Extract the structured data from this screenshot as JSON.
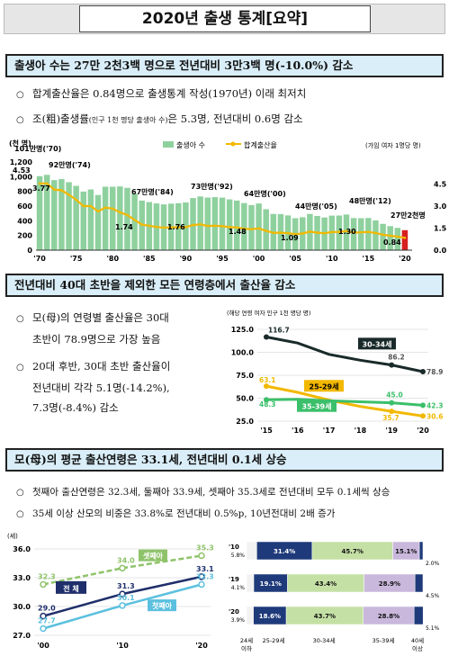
{
  "title": "2020년 출생 통계[요약]",
  "section1": {
    "head": "출생아 수는 27만 2천3백 명으로 전년대비 3만3백 명(-10.0%) 감소",
    "bullet1": "합계출산율은 0.84명으로 출생통계 작성(1970년) 이래 최저치",
    "bullet2_a": "조(粗)출생률",
    "bullet2_note": "(인구 1천 명당 출생아 수)",
    "bullet2_b": "은 5.3명, 전년대비 0.6명 감소"
  },
  "chart1": {
    "yleft_unit": "(천 명)",
    "yright_unit": "(가임 여자 1명당 명)",
    "legend_births": "출생아 수",
    "legend_tfr": "합계출산율",
    "yleft_ticks": [
      "1,200",
      "1,000",
      "800",
      "600",
      "400",
      "200",
      "0"
    ],
    "yright_ticks": [
      "4.50",
      "3.00",
      "1.50",
      "0.00"
    ],
    "xticks": [
      "'70",
      "'75",
      "'80",
      "'85",
      "'90",
      "'95",
      "'00",
      "'05",
      "'10",
      "'15",
      "'20"
    ],
    "birth_labels": [
      "101만명('70)",
      "92만명('74)",
      "67만명('84)",
      "73만명('92)",
      "64만명('00)",
      "44만명('05)",
      "48만명('12)",
      "27만2천명"
    ],
    "tfr_labels": [
      "4.53",
      "3.77",
      "1.74",
      "1.76",
      "1.48",
      "1.09",
      "1.30",
      "0.84"
    ]
  },
  "section2": {
    "head": "전년대비 40대 초반을 제외한 모든 연령층에서 출산율 감소",
    "bullet1_l1": "모(母)의 연령별 출산율은 30대",
    "bullet1_l2": "초반이 78.9명으로 가장 높음",
    "bullet2_l1": "20대 후반, 30대 초반 출산율이",
    "bullet2_l2": "전년대비 각각 5.1명(-14.2%),",
    "bullet2_l3": "7.3명(-8.4%) 감소"
  },
  "chart2": {
    "unit": "(해당 연령 여자 인구 1천 명당 명)",
    "yticks": [
      "125.0",
      "100.0",
      "75.0",
      "50.0",
      "25.0"
    ],
    "xticks": [
      "'15",
      "'16",
      "'17",
      "'18",
      "'19",
      "'20"
    ],
    "series_3034": "30-34세",
    "series_2529": "25-29세",
    "series_3539": "35-39세",
    "labels": [
      "116.7",
      "86.2",
      "78.9",
      "63.1",
      "48.3",
      "45.0",
      "42.3",
      "35.7",
      "30.6"
    ]
  },
  "section3": {
    "head": "모(母)의 평균 출산연령은 33.1세, 전년대비 0.1세 상승",
    "bullet1": "첫째아 출산연령은 32.3세, 둘째아 33.9세, 셋째아 35.3세로 전년대비 모두 0.1세씩 상승",
    "bullet2": "35세 이상 산모의 비중은 33.8%로 전년대비 0.5%p, 10년전대비 2배 증가"
  },
  "chart3": {
    "unit": "(세)",
    "yticks": [
      "36.0",
      "33.0",
      "30.0",
      "27.0"
    ],
    "xticks": [
      "'00",
      "'10",
      "'20"
    ],
    "series_third": "셋째아",
    "series_total": "전  체",
    "series_first": "첫째아",
    "labels_third": [
      "32.3",
      "34.0",
      "35.3"
    ],
    "labels_total": [
      "29.0",
      "31.3",
      "33.1"
    ],
    "labels_first": [
      "27.7",
      "30.1",
      "32.3"
    ]
  },
  "chart4": {
    "rows": [
      {
        "year": "'10",
        "vals": [
          "5.8%",
          "31.4%",
          "45.7%",
          "15.1%",
          "2.0%"
        ]
      },
      {
        "year": "'19",
        "vals": [
          "4.1%",
          "19.1%",
          "43.4%",
          "28.9%",
          "4.5%"
        ]
      },
      {
        "year": "'20",
        "vals": [
          "3.9%",
          "18.6%",
          "43.7%",
          "28.8%",
          "5.1%"
        ]
      }
    ],
    "xlabels": [
      "24세\n이하",
      "25-29세",
      "30-34세",
      "35-39세",
      "40세\n이상"
    ],
    "colors": [
      "#f2f2f2",
      "#1f3a7a",
      "#c5e0a5",
      "#c9b8dc",
      "#1f3a7a"
    ]
  },
  "chart_data": [
    {
      "type": "bar",
      "title": "",
      "ylabel": "(천 명)",
      "x": [
        1970,
        1971,
        1972,
        1973,
        1974,
        1975,
        1976,
        1977,
        1978,
        1979,
        1980,
        1981,
        1982,
        1983,
        1984,
        1985,
        1986,
        1987,
        1988,
        1989,
        1990,
        1991,
        1992,
        1993,
        1994,
        1995,
        1996,
        1997,
        1998,
        1999,
        2000,
        2001,
        2002,
        2003,
        2004,
        2005,
        2006,
        2007,
        2008,
        2009,
        2010,
        2011,
        2012,
        2013,
        2014,
        2015,
        2016,
        2017,
        2018,
        2019,
        2020
      ],
      "series": [
        {
          "name": "출생아 수",
          "values": [
            1007,
            1025,
            953,
            967,
            925,
            875,
            797,
            826,
            751,
            863,
            863,
            867,
            848,
            769,
            675,
            655,
            636,
            623,
            633,
            639,
            650,
            709,
            731,
            716,
            721,
            715,
            691,
            675,
            641,
            614,
            635,
            557,
            493,
            491,
            473,
            435,
            448,
            493,
            466,
            445,
            470,
            471,
            485,
            437,
            435,
            438,
            406,
            358,
            327,
            303,
            272
          ]
        },
        {
          "name": "합계출산율",
          "values": [
            4.53,
            4.54,
            4.12,
            4.07,
            3.77,
            3.43,
            3.0,
            3.0,
            2.64,
            2.9,
            2.82,
            2.57,
            2.39,
            2.06,
            1.74,
            1.66,
            1.58,
            1.53,
            1.55,
            1.56,
            1.57,
            1.71,
            1.76,
            1.65,
            1.66,
            1.63,
            1.57,
            1.54,
            1.46,
            1.42,
            1.48,
            1.31,
            1.18,
            1.19,
            1.16,
            1.09,
            1.13,
            1.26,
            1.19,
            1.15,
            1.23,
            1.24,
            1.3,
            1.19,
            1.21,
            1.24,
            1.17,
            1.05,
            0.98,
            0.92,
            0.84
          ]
        }
      ],
      "yrange_left": [
        0,
        1200
      ],
      "yrange_right": [
        0,
        6
      ]
    },
    {
      "type": "line",
      "x": [
        "'15",
        "'16",
        "'17",
        "'18",
        "'19",
        "'20"
      ],
      "series": [
        {
          "name": "30-34세",
          "values": [
            116.7,
            110.1,
            97.7,
            91.4,
            86.2,
            78.9
          ]
        },
        {
          "name": "25-29세",
          "values": [
            63.1,
            56.4,
            47.9,
            41.0,
            35.7,
            30.6
          ]
        },
        {
          "name": "35-39세",
          "values": [
            48.3,
            48.7,
            47.2,
            46.1,
            45.0,
            42.3
          ]
        }
      ],
      "ylim": [
        25,
        125
      ]
    },
    {
      "type": "line",
      "x": [
        "'00",
        "'10",
        "'20"
      ],
      "series": [
        {
          "name": "셋째아",
          "values": [
            32.3,
            34.0,
            35.3
          ]
        },
        {
          "name": "전  체",
          "values": [
            29.0,
            31.3,
            33.1
          ]
        },
        {
          "name": "첫째아",
          "values": [
            27.7,
            30.1,
            32.3
          ]
        }
      ],
      "ylim": [
        27,
        36
      ]
    },
    {
      "type": "bar",
      "categories": [
        "'10",
        "'19",
        "'20"
      ],
      "series": [
        {
          "name": "24세 이하",
          "values": [
            5.8,
            4.1,
            3.9
          ]
        },
        {
          "name": "25-29세",
          "values": [
            31.4,
            19.1,
            18.6
          ]
        },
        {
          "name": "30-34세",
          "values": [
            45.7,
            43.4,
            43.7
          ]
        },
        {
          "name": "35-39세",
          "values": [
            15.1,
            28.9,
            28.8
          ]
        },
        {
          "name": "40세 이상",
          "values": [
            2.0,
            4.5,
            5.1
          ]
        }
      ]
    }
  ]
}
